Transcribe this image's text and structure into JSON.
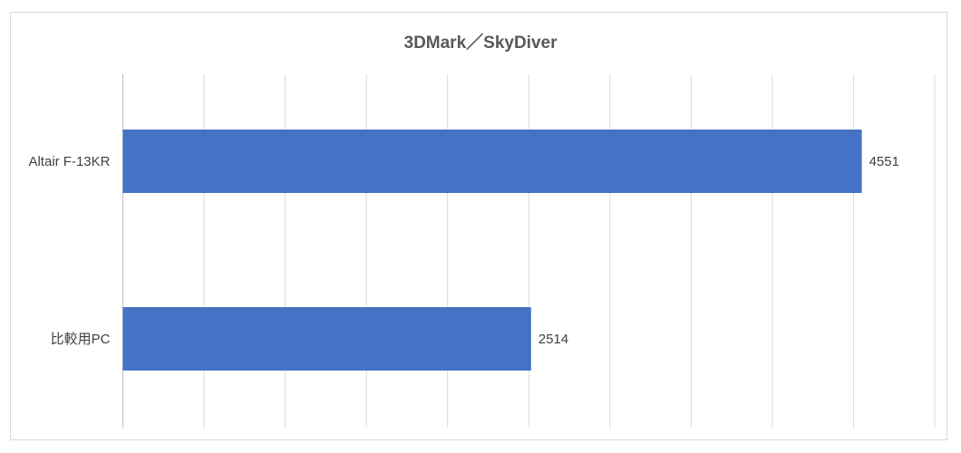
{
  "chart_data": {
    "type": "bar",
    "orientation": "horizontal",
    "title": "3DMark／SkyDiver",
    "categories": [
      "Altair F-13KR",
      "比較用PC"
    ],
    "values": [
      4551,
      2514
    ],
    "data_labels": [
      "4551",
      "2514"
    ],
    "xlim": [
      0,
      5000
    ],
    "x_grid_step": 500,
    "grid": true,
    "legend": "none",
    "colors": {
      "bar": "#4472C4",
      "grid": "#d9d9d9",
      "axis": "#bfbfbf",
      "text": "#404040",
      "title": "#595959"
    }
  }
}
